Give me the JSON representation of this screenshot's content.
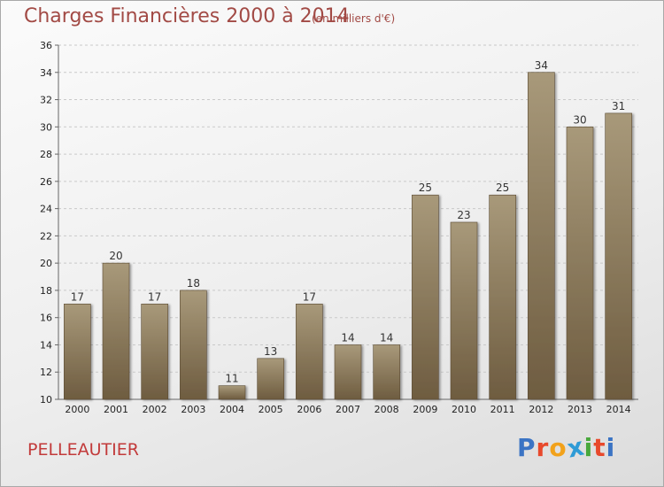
{
  "header": {
    "title": "Charges Financières 2000 à 2014",
    "subtitle": "(en milliers d'€)"
  },
  "footer": {
    "commune": "PELLEAUTIER",
    "logo": [
      "P",
      "r",
      "o",
      "x",
      "i",
      "t",
      "i"
    ]
  },
  "colors": {
    "title": "#a24a45",
    "commune": "#c23a3a",
    "bar_top": "#a8997a",
    "bar_bottom": "#6e5c40",
    "logo": [
      "#3b74c4",
      "#e8492c",
      "#f2a21b",
      "#2e9bd6",
      "#49a83c",
      "#e8492c",
      "#3b74c4"
    ]
  },
  "chart_data": {
    "type": "bar",
    "title": "Charges Financières 2000 à 2014",
    "subtitle": "(en milliers d'€)",
    "categories": [
      "2000",
      "2001",
      "2002",
      "2003",
      "2004",
      "2005",
      "2006",
      "2007",
      "2008",
      "2009",
      "2010",
      "2011",
      "2012",
      "2013",
      "2014"
    ],
    "values": [
      17,
      20,
      17,
      18,
      11,
      13,
      17,
      14,
      14,
      25,
      23,
      25,
      34,
      30,
      31
    ],
    "ylim": [
      10,
      36
    ],
    "yticks": [
      10,
      12,
      14,
      16,
      18,
      20,
      22,
      24,
      26,
      28,
      30,
      32,
      34,
      36
    ],
    "grid": true,
    "data_labels": true,
    "xlabel": "",
    "ylabel": ""
  }
}
